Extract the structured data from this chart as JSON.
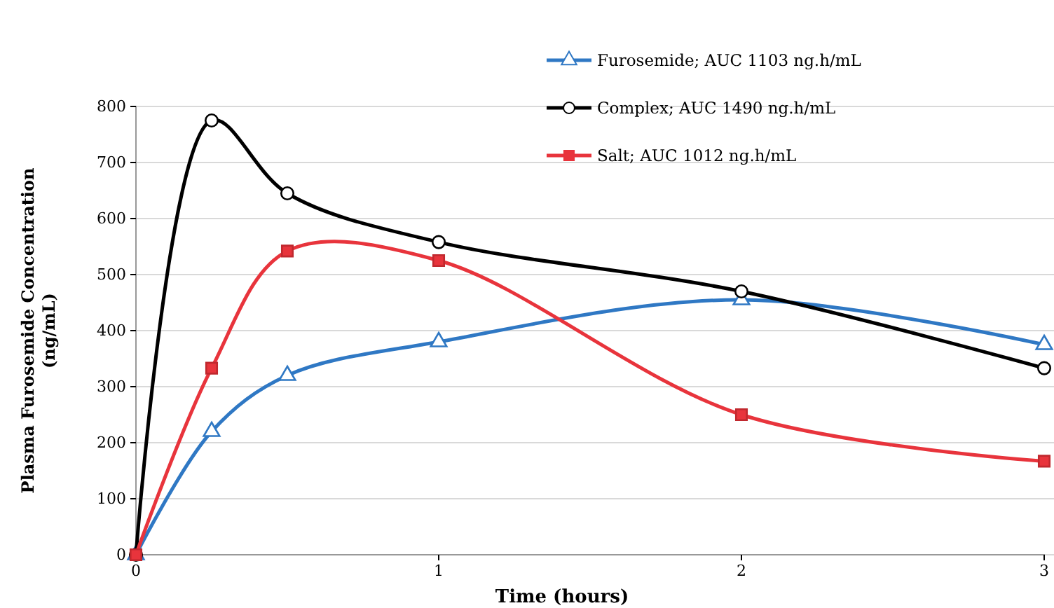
{
  "chart_data": {
    "type": "line",
    "xlabel": "Time (hours)",
    "ylabel": "Plasma Furosemide Concentration\n(ng/mL)",
    "x": [
      0,
      0.25,
      0.5,
      1,
      2,
      3
    ],
    "series": [
      {
        "name": "Furosemide; AUC 1103 ng.h/mL",
        "color": "#2f78c4",
        "marker": "triangle",
        "values": [
          0,
          220,
          320,
          380,
          455,
          375
        ]
      },
      {
        "name": "Complex; AUC 1490 ng.h/mL",
        "color": "#000000",
        "marker": "circle",
        "values": [
          0,
          775,
          645,
          558,
          470,
          333
        ]
      },
      {
        "name": "Salt; AUC 1012 ng.h/mL",
        "color": "#e8343c",
        "marker": "square",
        "values": [
          0,
          333,
          542,
          525,
          250,
          167
        ]
      }
    ],
    "xlim": [
      0,
      3
    ],
    "xticks": [
      0,
      1,
      2,
      3
    ],
    "ylim": [
      0,
      800
    ],
    "yticks": [
      0,
      100,
      200,
      300,
      400,
      500,
      600,
      700,
      800
    ],
    "grid": "y",
    "legend": "top right",
    "line_style": "solid"
  }
}
